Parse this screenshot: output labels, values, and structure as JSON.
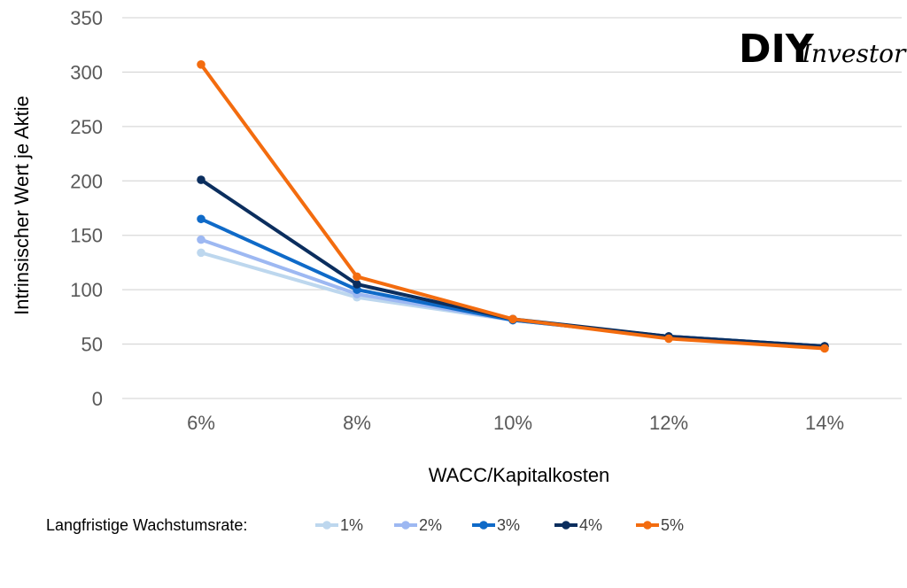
{
  "brand": {
    "part1": "DIY",
    "part2": "Investor"
  },
  "chart_data": {
    "type": "line",
    "title": "",
    "xlabel": "WACC/Kapitalkosten",
    "ylabel": "Intrinsischer Wert je Aktie",
    "categories": [
      "6%",
      "8%",
      "10%",
      "12%",
      "14%"
    ],
    "ylim": [
      0,
      350
    ],
    "yticks": [
      0,
      50,
      100,
      150,
      200,
      250,
      300,
      350
    ],
    "grid": true,
    "legend": {
      "title": "Langfristige Wachstumsrate:",
      "position": "bottom"
    },
    "series": [
      {
        "name": "1%",
        "color": "#bdd7ee",
        "values": [
          134,
          93,
          72,
          57,
          48
        ]
      },
      {
        "name": "2%",
        "color": "#9db8f2",
        "values": [
          146,
          96,
          72,
          57,
          48
        ]
      },
      {
        "name": "3%",
        "color": "#0f6ac8",
        "values": [
          165,
          100,
          72,
          57,
          48
        ]
      },
      {
        "name": "4%",
        "color": "#0b2e5e",
        "values": [
          201,
          105,
          73,
          57,
          48
        ]
      },
      {
        "name": "5%",
        "color": "#f36c0f",
        "values": [
          307,
          112,
          73,
          55,
          46
        ]
      }
    ]
  }
}
